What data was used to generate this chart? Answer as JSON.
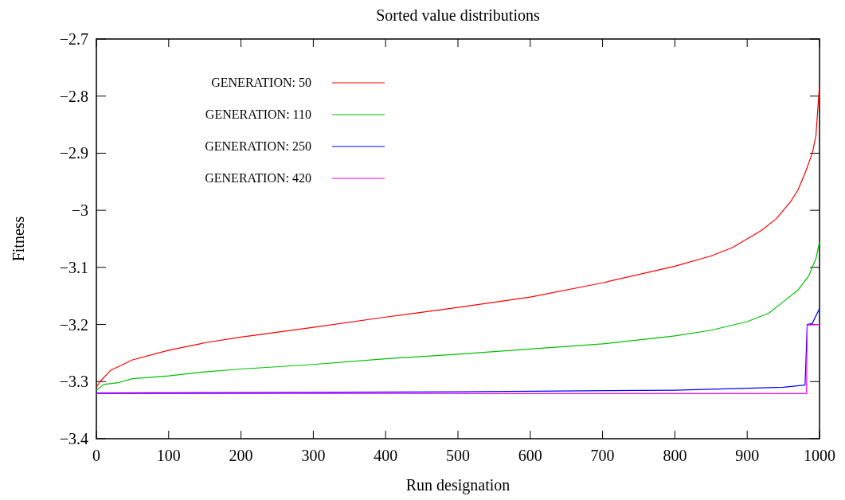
{
  "chart_data": {
    "type": "line",
    "title": "Sorted value distributions",
    "xlabel": "Run designation",
    "ylabel": "Fitness",
    "xlim": [
      0,
      1000
    ],
    "xticks": [
      0,
      100,
      200,
      300,
      400,
      500,
      600,
      700,
      800,
      900,
      1000
    ],
    "ylim": [
      -3.4,
      -2.7
    ],
    "yticks": [
      {
        "value": -3.4,
        "label": "−3.4"
      },
      {
        "value": -3.3,
        "label": "−3.3"
      },
      {
        "value": -3.2,
        "label": "−3.2"
      },
      {
        "value": -3.1,
        "label": "−3.1"
      },
      {
        "value": -3,
        "label": "−3"
      },
      {
        "value": -2.9,
        "label": "−2.9"
      },
      {
        "value": -2.8,
        "label": "−2.8"
      },
      {
        "value": -2.7,
        "label": "−2.7"
      }
    ],
    "grid": false,
    "legend": "top left",
    "line_style": "solid",
    "series": [
      {
        "name": "GENERATION: 50",
        "color": "#ff0000",
        "x": [
          0,
          5,
          20,
          50,
          100,
          150,
          200,
          300,
          400,
          500,
          600,
          700,
          800,
          850,
          880,
          900,
          920,
          940,
          960,
          970,
          980,
          990,
          995,
          1000
        ],
        "values": [
          -3.31,
          -3.3,
          -3.28,
          -3.262,
          -3.245,
          -3.232,
          -3.222,
          -3.205,
          -3.187,
          -3.17,
          -3.152,
          -3.127,
          -3.098,
          -3.08,
          -3.065,
          -3.05,
          -3.035,
          -3.015,
          -2.985,
          -2.965,
          -2.935,
          -2.9,
          -2.87,
          -2.78
        ]
      },
      {
        "name": "GENERATION: 110",
        "color": "#00c000",
        "x": [
          0,
          10,
          30,
          50,
          100,
          150,
          200,
          300,
          400,
          500,
          600,
          700,
          800,
          850,
          900,
          930,
          950,
          970,
          985,
          995,
          1000
        ],
        "values": [
          -3.315,
          -3.305,
          -3.302,
          -3.295,
          -3.29,
          -3.283,
          -3.278,
          -3.27,
          -3.26,
          -3.252,
          -3.243,
          -3.234,
          -3.22,
          -3.21,
          -3.195,
          -3.18,
          -3.16,
          -3.14,
          -3.115,
          -3.085,
          -3.055
        ]
      },
      {
        "name": "GENERATION: 250",
        "color": "#0000ff",
        "x": [
          0,
          500,
          800,
          950,
          980,
          983,
          990,
          1000
        ],
        "values": [
          -3.32,
          -3.318,
          -3.315,
          -3.31,
          -3.306,
          -3.2,
          -3.198,
          -3.172
        ]
      },
      {
        "name": "GENERATION: 420",
        "color": "#ff00ff",
        "x": [
          0,
          982,
          983,
          1000
        ],
        "values": [
          -3.321,
          -3.321,
          -3.201,
          -3.2
        ]
      }
    ]
  }
}
